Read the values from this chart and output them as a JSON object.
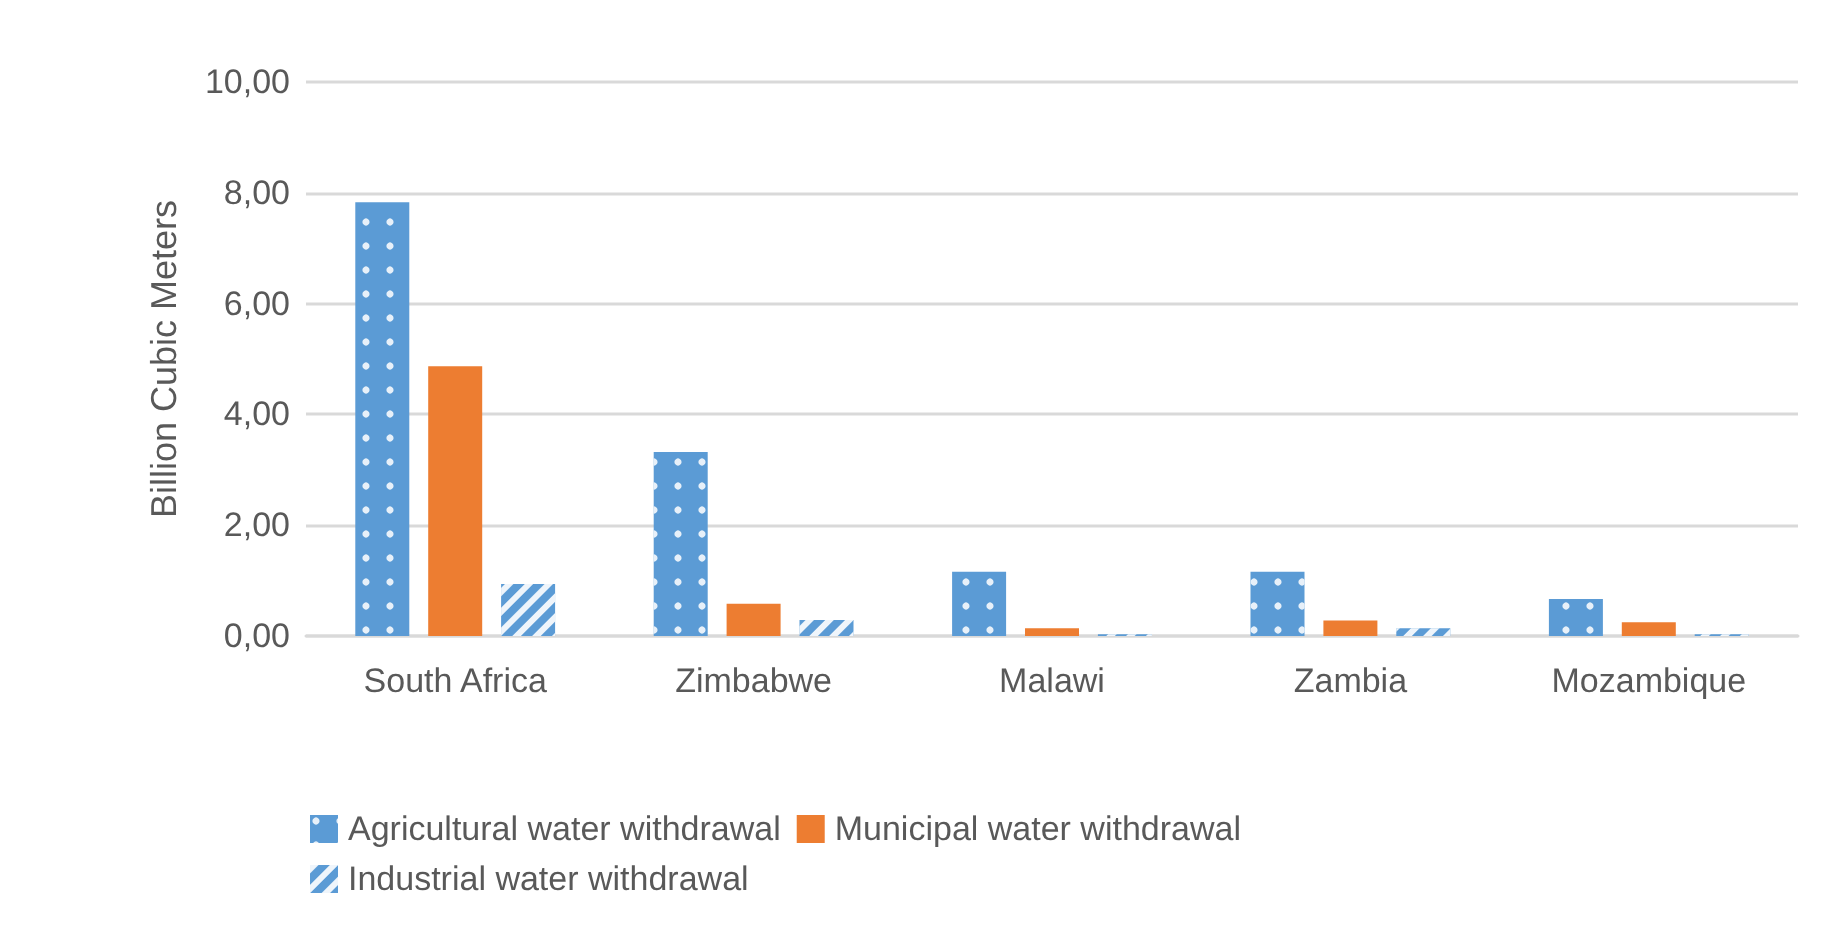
{
  "chart_data": {
    "type": "bar",
    "ylabel": "Billion Cubic Meters",
    "categories": [
      "South Africa",
      "Zimbabwe",
      "Malawi",
      "Zambia",
      "Mozambique"
    ],
    "series": [
      {
        "name": "Agricultural water withdrawal",
        "color": "#5b9bd5",
        "values": [
          7.83,
          3.32,
          1.16,
          1.16,
          0.67
        ]
      },
      {
        "name": "Municipal water withdrawal",
        "color": "#ed7d31",
        "values": [
          4.87,
          0.58,
          0.14,
          0.28,
          0.25
        ]
      },
      {
        "name": "Industrial water withdrawal",
        "color": "#5b9bd5",
        "values": [
          0.94,
          0.29,
          0.03,
          0.14,
          0.03
        ]
      }
    ],
    "ylim": [
      0,
      10
    ],
    "yticks": [
      {
        "value": 0,
        "label": "0,00"
      },
      {
        "value": 2,
        "label": "2,00"
      },
      {
        "value": 4,
        "label": "4,00"
      },
      {
        "value": 6,
        "label": "6,00"
      },
      {
        "value": 8,
        "label": "8,00"
      },
      {
        "value": 10,
        "label": "10,00"
      }
    ],
    "grid": "y",
    "legend": "bottom"
  }
}
